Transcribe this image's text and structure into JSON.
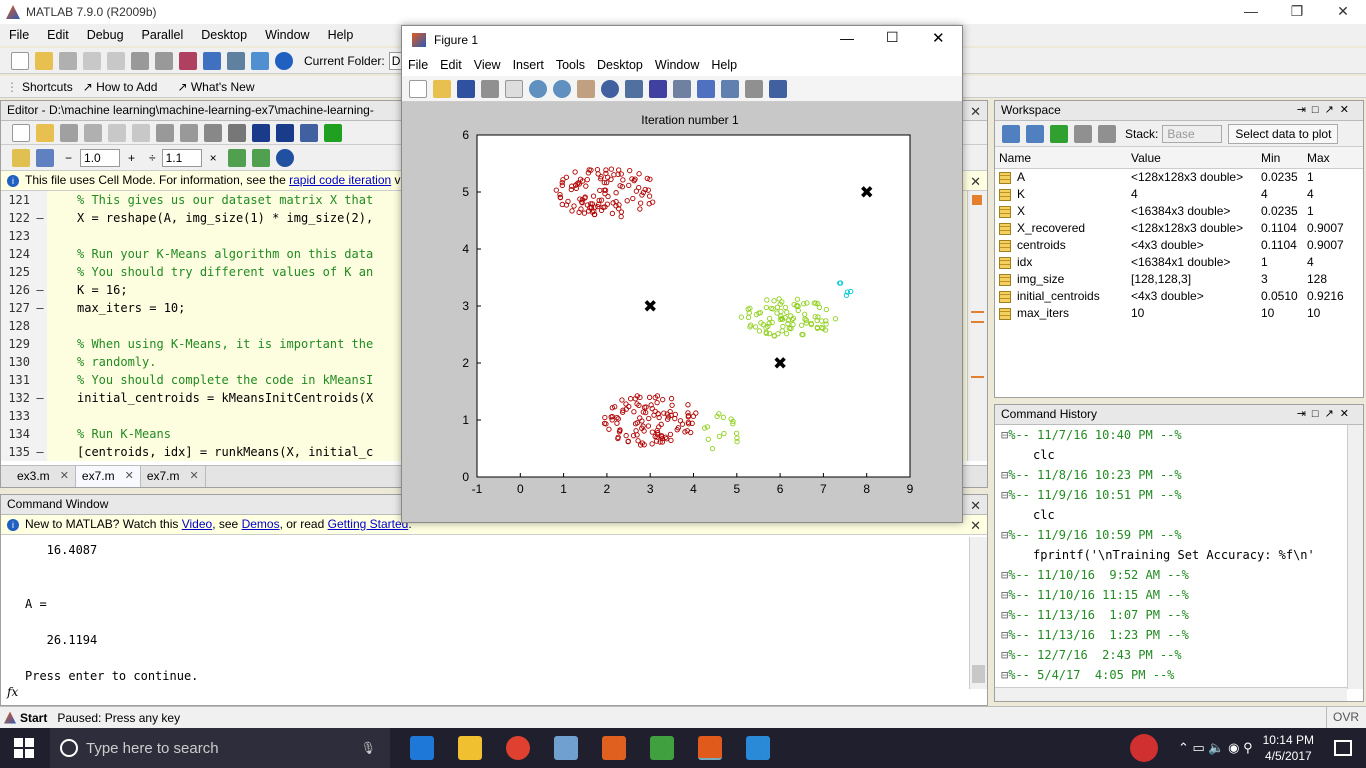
{
  "app": {
    "title": "MATLAB  7.9.0 (R2009b)"
  },
  "menu": [
    "File",
    "Edit",
    "Debug",
    "Parallel",
    "Desktop",
    "Window",
    "Help"
  ],
  "toolbar": {
    "current_folder_label": "Current Folder:",
    "current_folder_value": "D:\\"
  },
  "shortcuts": {
    "shortcuts": "Shortcuts",
    "how_to_add": "How to Add",
    "whats_new": "What's New"
  },
  "editor": {
    "title": "Editor - D:\\machine learning\\machine-learning-ex7\\machine-learning-",
    "zoom_a": "1.0",
    "zoom_b": "1.1",
    "cell_info_pre": "This file uses Cell Mode. For information, see the ",
    "cell_info_link": "rapid code iteration",
    "cell_info_post": " vic",
    "lines": [
      {
        "n": "121",
        "bp": "",
        "text": "% This gives us our dataset matrix X that",
        "comment": true
      },
      {
        "n": "122",
        "bp": "–",
        "text": "X = reshape(A, img_size(1) * img_size(2),",
        "comment": false
      },
      {
        "n": "123",
        "bp": "",
        "text": "",
        "comment": false
      },
      {
        "n": "124",
        "bp": "",
        "text": "% Run your K-Means algorithm on this data",
        "comment": true
      },
      {
        "n": "125",
        "bp": "",
        "text": "% You should try different values of K an",
        "comment": true
      },
      {
        "n": "126",
        "bp": "–",
        "text": "K = 16;",
        "comment": false
      },
      {
        "n": "127",
        "bp": "–",
        "text": "max_iters = 10;",
        "comment": false
      },
      {
        "n": "128",
        "bp": "",
        "text": "",
        "comment": false
      },
      {
        "n": "129",
        "bp": "",
        "text": "% When using K-Means, it is important the",
        "comment": true
      },
      {
        "n": "130",
        "bp": "",
        "text": "% randomly.",
        "comment": true
      },
      {
        "n": "131",
        "bp": "",
        "text": "% You should complete the code in kMeansI",
        "comment": true
      },
      {
        "n": "132",
        "bp": "–",
        "text": "initial_centroids = kMeansInitCentroids(X",
        "comment": false
      },
      {
        "n": "133",
        "bp": "",
        "text": "",
        "comment": false
      },
      {
        "n": "134",
        "bp": "",
        "text": "% Run K-Means",
        "comment": true
      },
      {
        "n": "135",
        "bp": "–",
        "text": "[centroids, idx] = runkMeans(X, initial_c",
        "comment": false
      }
    ],
    "tabs": [
      "ex3.m",
      "ex7.m",
      "ex7.m"
    ]
  },
  "command_window": {
    "title": "Command Window",
    "info_pre": "New to MATLAB? Watch this ",
    "info_video": "Video",
    "info_mid1": ", see ",
    "info_demos": "Demos",
    "info_mid2": ", or read ",
    "info_gs": "Getting Started",
    "info_post": ".",
    "lines": [
      "   16.4087",
      "A =",
      "   26.1194",
      "Press enter to continue."
    ],
    "prompt": "fx"
  },
  "figure": {
    "title": "Figure 1",
    "menu": [
      "File",
      "Edit",
      "View",
      "Insert",
      "Tools",
      "Desktop",
      "Window",
      "Help"
    ]
  },
  "chart_data": {
    "type": "scatter",
    "title": "Iteration number 1",
    "xlim": [
      -1,
      9
    ],
    "ylim": [
      0,
      6
    ],
    "xticks": [
      -1,
      0,
      1,
      2,
      3,
      4,
      5,
      6,
      7,
      8,
      9
    ],
    "yticks": [
      0,
      1,
      2,
      3,
      4,
      5,
      6
    ],
    "grid": false,
    "clusters": [
      {
        "color": "#b00000",
        "center": [
          2.0,
          5.0
        ],
        "spread": [
          1.2,
          0.45
        ],
        "count": 110
      },
      {
        "color": "#b00000",
        "center": [
          3.0,
          1.0
        ],
        "spread": [
          1.1,
          0.45
        ],
        "count": 110
      },
      {
        "color": "#90d020",
        "center": [
          6.2,
          2.8
        ],
        "spread": [
          1.1,
          0.35
        ],
        "count": 90
      },
      {
        "color": "#90d020",
        "center": [
          4.6,
          0.8
        ],
        "spread": [
          0.5,
          0.35
        ],
        "count": 15
      },
      {
        "color": "#00c8d8",
        "center": [
          7.5,
          3.3
        ],
        "spread": [
          0.3,
          0.2
        ],
        "count": 5
      }
    ],
    "centroids": [
      [
        8.0,
        5.0
      ],
      [
        3.0,
        3.0
      ],
      [
        6.0,
        2.0
      ]
    ]
  },
  "workspace": {
    "title": "Workspace",
    "stack_label": "Stack:",
    "stack_value": "Base",
    "select_plot": "Select data to plot",
    "columns": [
      "Name",
      "Value",
      "Min",
      "Max"
    ],
    "rows": [
      {
        "name": "A",
        "value": "<128x128x3 double>",
        "min": "0.0235",
        "max": "1"
      },
      {
        "name": "K",
        "value": "4",
        "min": "4",
        "max": "4"
      },
      {
        "name": "X",
        "value": "<16384x3 double>",
        "min": "0.0235",
        "max": "1"
      },
      {
        "name": "X_recovered",
        "value": "<128x128x3 double>",
        "min": "0.1104",
        "max": "0.9007"
      },
      {
        "name": "centroids",
        "value": "<4x3 double>",
        "min": "0.1104",
        "max": "0.9007"
      },
      {
        "name": "idx",
        "value": "<16384x1 double>",
        "min": "1",
        "max": "4"
      },
      {
        "name": "img_size",
        "value": "[128,128,3]",
        "min": "3",
        "max": "128"
      },
      {
        "name": "initial_centroids",
        "value": "<4x3 double>",
        "min": "0.0510",
        "max": "0.9216"
      },
      {
        "name": "max_iters",
        "value": "10",
        "min": "10",
        "max": "10"
      }
    ]
  },
  "history": {
    "title": "Command History",
    "items": [
      {
        "text": "%-- 11/7/16 10:40 PM --%",
        "type": "session"
      },
      {
        "text": "clc",
        "type": "cmd"
      },
      {
        "text": "%-- 11/8/16 10:23 PM --%",
        "type": "session"
      },
      {
        "text": "%-- 11/9/16 10:51 PM --%",
        "type": "session"
      },
      {
        "text": "clc",
        "type": "cmd"
      },
      {
        "text": "%-- 11/9/16 10:59 PM --%",
        "type": "session"
      },
      {
        "text": "fprintf('\\nTraining Set Accuracy: %f\\n'",
        "type": "cmd"
      },
      {
        "text": "%-- 11/10/16  9:52 AM --%",
        "type": "session"
      },
      {
        "text": "%-- 11/10/16 11:15 AM --%",
        "type": "session"
      },
      {
        "text": "%-- 11/13/16  1:07 PM --%",
        "type": "session"
      },
      {
        "text": "%-- 11/13/16  1:23 PM --%",
        "type": "session"
      },
      {
        "text": "%-- 12/7/16  2:43 PM --%",
        "type": "session"
      },
      {
        "text": "%-- 5/4/17  4:05 PM --%",
        "type": "session"
      }
    ]
  },
  "status": {
    "start": "Start",
    "message": "Paused: Press any key",
    "ovr": "OVR"
  },
  "taskbar": {
    "search_placeholder": "Type here to search",
    "time": "10:14 PM",
    "date": "4/5/2017"
  },
  "colors": {
    "accent": "#1f1f2e",
    "plot_bg": "#ffffff",
    "figure_bg": "#c8c8c8"
  }
}
